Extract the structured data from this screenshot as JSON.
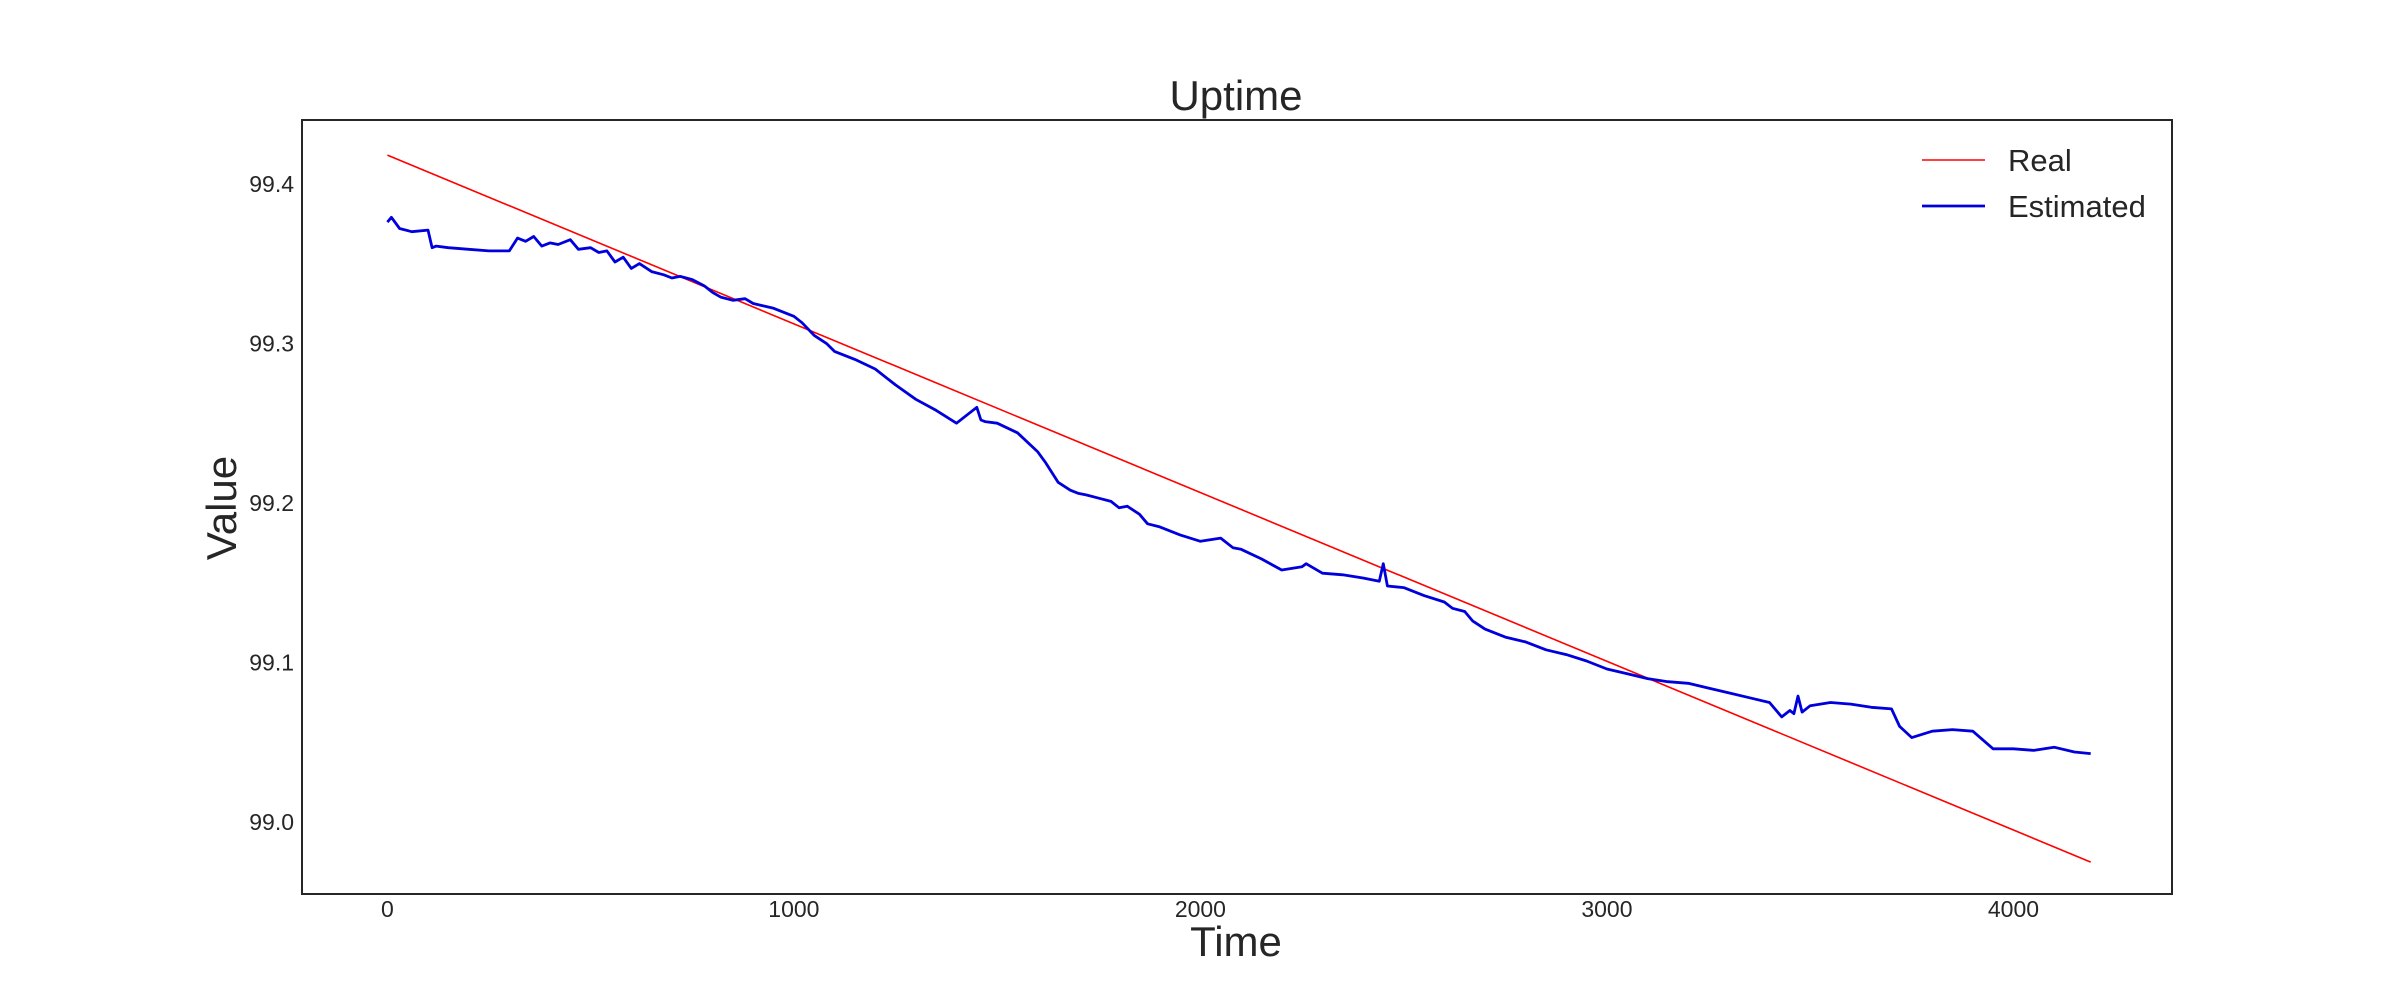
{
  "chart_data": {
    "type": "line",
    "title": "Uptime",
    "xlabel": "Time",
    "ylabel": "Value",
    "xlim": [
      -210,
      4390
    ],
    "ylim": [
      98.955,
      99.44
    ],
    "xticks": [
      0,
      1000,
      2000,
      3000,
      4000
    ],
    "xtick_labels": [
      "0",
      "1000",
      "2000",
      "3000",
      "4000"
    ],
    "yticks": [
      99.0,
      99.1,
      99.2,
      99.3,
      99.4
    ],
    "ytick_labels": [
      "99.0",
      "99.1",
      "99.2",
      "99.3",
      "99.4"
    ],
    "grid": false,
    "legend_position": "top-right",
    "series": [
      {
        "name": "Real",
        "color": "#ff0000",
        "x": [
          0,
          4190
        ],
        "y": [
          99.418,
          98.975
        ]
      },
      {
        "name": "Estimated",
        "color": "#0000dd",
        "x": [
          0,
          10,
          30,
          60,
          100,
          110,
          120,
          150,
          200,
          250,
          300,
          320,
          340,
          360,
          380,
          400,
          420,
          450,
          470,
          500,
          520,
          540,
          560,
          580,
          600,
          620,
          650,
          680,
          700,
          720,
          750,
          780,
          800,
          820,
          850,
          880,
          900,
          950,
          1000,
          1020,
          1050,
          1080,
          1100,
          1150,
          1200,
          1250,
          1300,
          1350,
          1400,
          1450,
          1460,
          1470,
          1500,
          1550,
          1600,
          1620,
          1650,
          1680,
          1700,
          1720,
          1750,
          1780,
          1800,
          1820,
          1850,
          1870,
          1900,
          1950,
          2000,
          2050,
          2080,
          2100,
          2150,
          2200,
          2250,
          2260,
          2300,
          2350,
          2400,
          2440,
          2450,
          2460,
          2500,
          2550,
          2600,
          2620,
          2650,
          2670,
          2700,
          2750,
          2800,
          2850,
          2900,
          2950,
          3000,
          3050,
          3100,
          3150,
          3200,
          3250,
          3300,
          3350,
          3400,
          3430,
          3450,
          3460,
          3470,
          3480,
          3500,
          3550,
          3600,
          3650,
          3700,
          3720,
          3750,
          3800,
          3850,
          3900,
          3950,
          4000,
          4050,
          4100,
          4150,
          4190
        ],
        "y": [
          99.376,
          99.379,
          99.372,
          99.37,
          99.371,
          99.36,
          99.361,
          99.36,
          99.359,
          99.358,
          99.358,
          99.366,
          99.364,
          99.367,
          99.361,
          99.363,
          99.362,
          99.365,
          99.359,
          99.36,
          99.357,
          99.358,
          99.351,
          99.354,
          99.347,
          99.35,
          99.345,
          99.343,
          99.341,
          99.342,
          99.34,
          99.336,
          99.332,
          99.329,
          99.327,
          99.328,
          99.325,
          99.322,
          99.317,
          99.313,
          99.305,
          99.3,
          99.295,
          99.29,
          99.284,
          99.274,
          99.265,
          99.258,
          99.25,
          99.26,
          99.252,
          99.251,
          99.25,
          99.244,
          99.232,
          99.225,
          99.213,
          99.208,
          99.206,
          99.205,
          99.203,
          99.201,
          99.197,
          99.198,
          99.193,
          99.187,
          99.185,
          99.18,
          99.176,
          99.178,
          99.172,
          99.171,
          99.165,
          99.158,
          99.16,
          99.162,
          99.156,
          99.155,
          99.153,
          99.151,
          99.162,
          99.148,
          99.147,
          99.142,
          99.138,
          99.134,
          99.132,
          99.126,
          99.121,
          99.116,
          99.113,
          99.108,
          99.105,
          99.101,
          99.096,
          99.093,
          99.09,
          99.088,
          99.087,
          99.084,
          99.081,
          99.078,
          99.075,
          99.066,
          99.07,
          99.068,
          99.079,
          99.069,
          99.073,
          99.075,
          99.074,
          99.072,
          99.071,
          99.06,
          99.053,
          99.057,
          99.058,
          99.057,
          99.046,
          99.046,
          99.045,
          99.047,
          99.044,
          99.043
        ]
      }
    ]
  }
}
